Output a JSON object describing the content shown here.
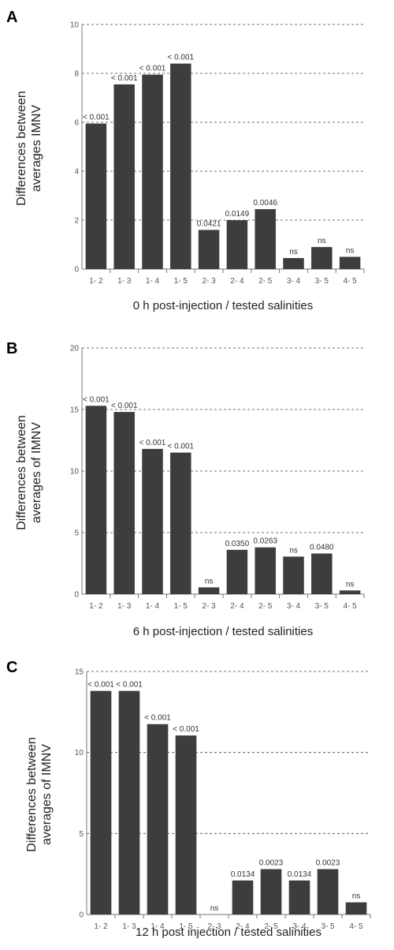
{
  "chart_data": [
    {
      "type": "bar",
      "panel": "A",
      "categories": [
        "1- 2",
        "1- 3",
        "1- 4",
        "1- 5",
        "2- 3",
        "2- 4",
        "2- 5",
        "3- 4",
        "3- 5",
        "4- 5"
      ],
      "values": [
        5.95,
        7.55,
        7.95,
        8.4,
        1.6,
        2.0,
        2.45,
        0.45,
        0.9,
        0.5
      ],
      "annotations": [
        "< 0.001",
        "< 0.001",
        "< 0.001",
        "< 0.001",
        "0.0421",
        "0.0149",
        "0.0046",
        "ns",
        "ns",
        "ns"
      ],
      "xlabel": "0 h post-injection / tested salinities",
      "ylabel_lines": [
        "Differences between",
        "averages IMNV"
      ],
      "ylim": [
        0,
        10
      ],
      "yticks": [
        0,
        2,
        4,
        6,
        8,
        10
      ],
      "grid": true
    },
    {
      "type": "bar",
      "panel": "B",
      "categories": [
        "1- 2",
        "1- 3",
        "1- 4",
        "1- 5",
        "2- 3",
        "2- 4",
        "2- 5",
        "3- 4",
        "3- 5",
        "4- 5"
      ],
      "values": [
        15.3,
        14.8,
        11.8,
        11.5,
        0.55,
        3.6,
        3.8,
        3.05,
        3.3,
        0.3
      ],
      "annotations": [
        "< 0.001",
        "< 0.001",
        "< 0.001",
        "< 0.001",
        "ns",
        "0.0350",
        "0.0263",
        "ns",
        "0.0480",
        "ns"
      ],
      "xlabel": "6 h post-injection / tested salinities",
      "ylabel_lines": [
        "Differences between",
        "averages of IMNV"
      ],
      "ylim": [
        0,
        20
      ],
      "yticks": [
        0,
        5,
        10,
        15,
        20
      ],
      "grid": true
    },
    {
      "type": "bar",
      "panel": "C",
      "categories": [
        "1- 2",
        "1- 3",
        "1- 4",
        "1- 5",
        "2- 3",
        "2- 4",
        "2- 5",
        "3- 4",
        "3- 5",
        "4- 5"
      ],
      "values": [
        13.8,
        13.8,
        11.75,
        11.05,
        0,
        2.1,
        2.8,
        2.1,
        2.8,
        0.75
      ],
      "annotations": [
        "< 0.001",
        "< 0.001",
        "< 0.001",
        "< 0.001",
        "ns",
        "0.0134",
        "0.0023",
        "0.0134",
        "0.0023",
        "ns"
      ],
      "xlabel": "12 h post injection / tested salinities",
      "ylabel_lines": [
        "Differences between",
        "averages of IMNV"
      ],
      "ylim": [
        0,
        15
      ],
      "yticks": [
        0,
        5,
        10,
        15
      ],
      "grid": true
    }
  ],
  "colors": {
    "bar": "#3d3d3d",
    "grid": "#444444"
  }
}
